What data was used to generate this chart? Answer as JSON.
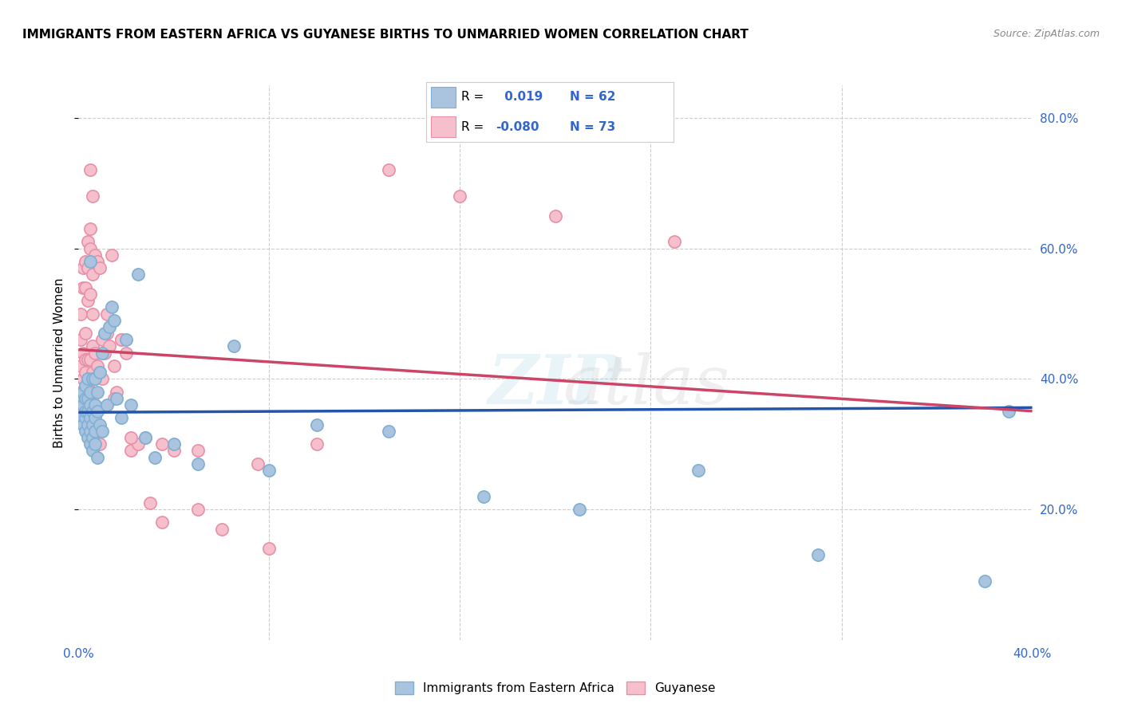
{
  "title": "IMMIGRANTS FROM EASTERN AFRICA VS GUYANESE BIRTHS TO UNMARRIED WOMEN CORRELATION CHART",
  "source": "Source: ZipAtlas.com",
  "ylabel": "Births to Unmarried Women",
  "xmin": 0.0,
  "xmax": 0.4,
  "ymin": 0.0,
  "ymax": 0.85,
  "yticks": [
    0.2,
    0.4,
    0.6,
    0.8
  ],
  "ytick_labels": [
    "20.0%",
    "40.0%",
    "60.0%",
    "80.0%"
  ],
  "xtick_labels_show": [
    "0.0%",
    "40.0%"
  ],
  "blue_R": 0.019,
  "blue_N": 62,
  "pink_R": -0.08,
  "pink_N": 73,
  "blue_color": "#aac4e0",
  "blue_edge_color": "#7fafd4",
  "pink_color": "#f5c0cc",
  "pink_edge_color": "#e890a8",
  "blue_line_color": "#2255aa",
  "pink_line_color": "#cc4466",
  "legend_label_blue": "Immigrants from Eastern Africa",
  "legend_label_pink": "Guyanese",
  "blue_x": [
    0.001,
    0.001,
    0.002,
    0.002,
    0.002,
    0.003,
    0.003,
    0.003,
    0.003,
    0.003,
    0.004,
    0.004,
    0.004,
    0.004,
    0.004,
    0.005,
    0.005,
    0.005,
    0.005,
    0.005,
    0.005,
    0.006,
    0.006,
    0.006,
    0.006,
    0.006,
    0.007,
    0.007,
    0.007,
    0.007,
    0.007,
    0.008,
    0.008,
    0.008,
    0.009,
    0.009,
    0.01,
    0.01,
    0.011,
    0.012,
    0.013,
    0.014,
    0.015,
    0.016,
    0.018,
    0.02,
    0.022,
    0.025,
    0.028,
    0.032,
    0.04,
    0.05,
    0.065,
    0.08,
    0.1,
    0.13,
    0.17,
    0.21,
    0.26,
    0.31,
    0.38,
    0.39
  ],
  "blue_y": [
    0.34,
    0.37,
    0.33,
    0.36,
    0.38,
    0.32,
    0.34,
    0.35,
    0.37,
    0.39,
    0.31,
    0.33,
    0.35,
    0.37,
    0.4,
    0.3,
    0.32,
    0.34,
    0.36,
    0.38,
    0.58,
    0.29,
    0.31,
    0.33,
    0.35,
    0.4,
    0.3,
    0.32,
    0.34,
    0.36,
    0.4,
    0.28,
    0.35,
    0.38,
    0.33,
    0.41,
    0.32,
    0.44,
    0.47,
    0.36,
    0.48,
    0.51,
    0.49,
    0.37,
    0.34,
    0.46,
    0.36,
    0.56,
    0.31,
    0.28,
    0.3,
    0.27,
    0.45,
    0.26,
    0.33,
    0.32,
    0.22,
    0.2,
    0.26,
    0.13,
    0.09,
    0.35
  ],
  "pink_x": [
    0.001,
    0.001,
    0.001,
    0.001,
    0.001,
    0.002,
    0.002,
    0.002,
    0.002,
    0.002,
    0.003,
    0.003,
    0.003,
    0.003,
    0.003,
    0.003,
    0.004,
    0.004,
    0.004,
    0.004,
    0.004,
    0.005,
    0.005,
    0.005,
    0.005,
    0.005,
    0.005,
    0.006,
    0.006,
    0.006,
    0.006,
    0.006,
    0.007,
    0.007,
    0.007,
    0.008,
    0.008,
    0.009,
    0.009,
    0.01,
    0.01,
    0.011,
    0.012,
    0.013,
    0.014,
    0.015,
    0.016,
    0.018,
    0.02,
    0.022,
    0.025,
    0.03,
    0.035,
    0.04,
    0.05,
    0.06,
    0.08,
    0.1,
    0.13,
    0.16,
    0.2,
    0.25,
    0.005,
    0.007,
    0.009,
    0.012,
    0.015,
    0.018,
    0.022,
    0.028,
    0.035,
    0.05,
    0.075
  ],
  "pink_y": [
    0.35,
    0.38,
    0.42,
    0.46,
    0.5,
    0.36,
    0.4,
    0.44,
    0.54,
    0.57,
    0.37,
    0.41,
    0.43,
    0.47,
    0.54,
    0.58,
    0.39,
    0.43,
    0.52,
    0.57,
    0.61,
    0.38,
    0.43,
    0.53,
    0.6,
    0.63,
    0.72,
    0.41,
    0.45,
    0.5,
    0.56,
    0.68,
    0.4,
    0.44,
    0.59,
    0.42,
    0.58,
    0.41,
    0.57,
    0.4,
    0.46,
    0.44,
    0.47,
    0.45,
    0.59,
    0.42,
    0.38,
    0.46,
    0.44,
    0.29,
    0.3,
    0.21,
    0.18,
    0.29,
    0.2,
    0.17,
    0.14,
    0.3,
    0.72,
    0.68,
    0.65,
    0.61,
    0.35,
    0.32,
    0.3,
    0.5,
    0.37,
    0.46,
    0.31,
    0.31,
    0.3,
    0.29,
    0.27
  ]
}
